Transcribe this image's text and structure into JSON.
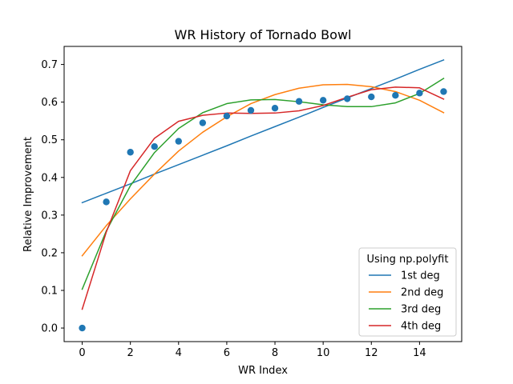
{
  "chart_data": {
    "type": "line",
    "title": "WR History of Tornado Bowl",
    "xlabel": "WR Index",
    "ylabel": "Relative Improvement",
    "xlim": [
      -0.75,
      15.75
    ],
    "ylim": [
      -0.036,
      0.748
    ],
    "x_ticks": [
      0,
      2,
      4,
      6,
      8,
      10,
      12,
      14
    ],
    "y_ticks": [
      0.0,
      0.1,
      0.2,
      0.3,
      0.4,
      0.5,
      0.6,
      0.7
    ],
    "grid": false,
    "legend": {
      "title": "Using np.polyfit",
      "placement": "lower-right"
    },
    "points": {
      "color": "#1f77b4",
      "x": [
        0,
        1,
        2,
        3,
        4,
        5,
        6,
        7,
        8,
        9,
        10,
        11,
        12,
        13,
        14,
        15
      ],
      "y": [
        0.0,
        0.335,
        0.467,
        0.482,
        0.496,
        0.545,
        0.563,
        0.578,
        0.584,
        0.602,
        0.605,
        0.609,
        0.614,
        0.618,
        0.624,
        0.628
      ]
    },
    "series": [
      {
        "name": "1st deg",
        "color": "#1f77b4",
        "x": [
          0,
          1,
          2,
          3,
          4,
          5,
          6,
          7,
          8,
          9,
          10,
          11,
          12,
          13,
          14,
          15
        ],
        "values": [
          0.333,
          0.358,
          0.383,
          0.409,
          0.434,
          0.459,
          0.484,
          0.51,
          0.535,
          0.56,
          0.586,
          0.611,
          0.636,
          0.661,
          0.687,
          0.712
        ]
      },
      {
        "name": "2nd deg",
        "color": "#ff7f0e",
        "x": [
          0,
          1,
          2,
          3,
          4,
          5,
          6,
          7,
          8,
          9,
          10,
          11,
          12,
          13,
          14,
          15
        ],
        "values": [
          0.192,
          0.272,
          0.343,
          0.409,
          0.47,
          0.52,
          0.561,
          0.596,
          0.62,
          0.637,
          0.646,
          0.647,
          0.641,
          0.628,
          0.605,
          0.572
        ]
      },
      {
        "name": "3rd deg",
        "color": "#2ca02c",
        "x": [
          0,
          1,
          2,
          3,
          4,
          5,
          6,
          7,
          8,
          9,
          10,
          11,
          12,
          13,
          14,
          15
        ],
        "values": [
          0.103,
          0.258,
          0.378,
          0.466,
          0.53,
          0.572,
          0.596,
          0.606,
          0.607,
          0.601,
          0.593,
          0.588,
          0.588,
          0.598,
          0.623,
          0.663
        ]
      },
      {
        "name": "4th deg",
        "color": "#d62728",
        "x": [
          0,
          1,
          2,
          3,
          4,
          5,
          6,
          7,
          8,
          9,
          10,
          11,
          12,
          13,
          14,
          15
        ],
        "values": [
          0.05,
          0.255,
          0.418,
          0.504,
          0.549,
          0.565,
          0.571,
          0.57,
          0.571,
          0.577,
          0.591,
          0.613,
          0.633,
          0.64,
          0.638,
          0.608
        ]
      }
    ]
  }
}
